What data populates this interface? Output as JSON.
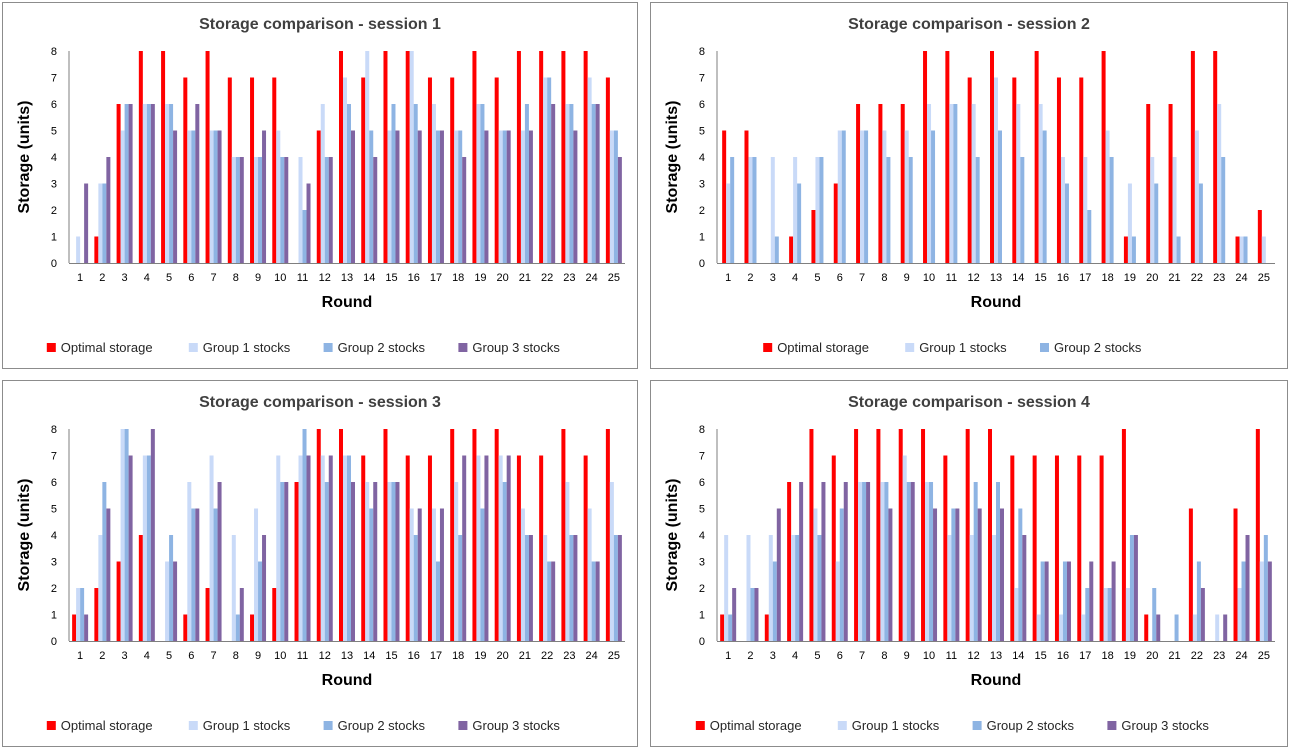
{
  "colors": {
    "optimal": "#ff0000",
    "group1": "#c9daf8",
    "group2": "#8eb4e3",
    "group3": "#8064a2",
    "axis": "#7f7f7f"
  },
  "chart_data": [
    {
      "type": "bar",
      "title": "Storage comparison - session 1",
      "xlabel": "Round",
      "ylabel": "Storage (units)",
      "ylim": [
        0,
        8
      ],
      "grid": false,
      "legend": "bottom",
      "categories": [
        "1",
        "2",
        "3",
        "4",
        "5",
        "6",
        "7",
        "8",
        "9",
        "10",
        "11",
        "12",
        "13",
        "14",
        "15",
        "16",
        "17",
        "18",
        "19",
        "20",
        "21",
        "22",
        "23",
        "24",
        "25"
      ],
      "series": [
        {
          "name": "Optimal storage",
          "values": [
            0,
            1,
            6,
            8,
            8,
            7,
            8,
            7,
            7,
            7,
            0,
            5,
            8,
            7,
            8,
            8,
            7,
            7,
            8,
            7,
            8,
            8,
            8,
            8,
            7
          ]
        },
        {
          "name": "Group 1 stocks",
          "values": [
            1,
            3,
            5,
            6,
            6,
            5,
            5,
            4,
            4,
            5,
            4,
            6,
            7,
            8,
            5,
            8,
            6,
            5,
            6,
            5,
            5,
            7,
            6,
            7,
            5
          ]
        },
        {
          "name": "Group 2 stocks",
          "values": [
            0,
            3,
            6,
            6,
            6,
            5,
            5,
            4,
            4,
            4,
            2,
            4,
            6,
            5,
            6,
            6,
            5,
            5,
            6,
            5,
            6,
            7,
            6,
            6,
            5
          ]
        },
        {
          "name": "Group 3 stocks",
          "values": [
            3,
            4,
            6,
            6,
            5,
            6,
            5,
            4,
            5,
            4,
            3,
            4,
            5,
            4,
            5,
            5,
            5,
            4,
            5,
            5,
            5,
            6,
            5,
            6,
            4
          ]
        }
      ]
    },
    {
      "type": "bar",
      "title": "Storage comparison - session 2",
      "xlabel": "Round",
      "ylabel": "Storage (units)",
      "ylim": [
        0,
        8
      ],
      "grid": false,
      "legend": "bottom",
      "categories": [
        "1",
        "2",
        "3",
        "4",
        "5",
        "6",
        "7",
        "8",
        "9",
        "10",
        "11",
        "12",
        "13",
        "14",
        "15",
        "16",
        "17",
        "18",
        "19",
        "20",
        "21",
        "22",
        "23",
        "24",
        "25"
      ],
      "series": [
        {
          "name": "Optimal storage",
          "values": [
            5,
            5,
            0,
            1,
            2,
            3,
            6,
            6,
            6,
            8,
            8,
            7,
            8,
            7,
            8,
            7,
            7,
            8,
            1,
            6,
            6,
            8,
            8,
            1,
            2
          ]
        },
        {
          "name": "Group 1 stocks",
          "values": [
            3,
            4,
            4,
            4,
            4,
            5,
            5,
            5,
            5,
            6,
            6,
            6,
            7,
            6,
            6,
            4,
            4,
            5,
            3,
            4,
            4,
            5,
            6,
            1,
            1
          ]
        },
        {
          "name": "Group 2 stocks",
          "values": [
            4,
            4,
            1,
            3,
            4,
            5,
            5,
            4,
            4,
            5,
            6,
            4,
            5,
            4,
            5,
            3,
            2,
            4,
            1,
            3,
            1,
            3,
            4,
            1,
            0
          ]
        }
      ]
    },
    {
      "type": "bar",
      "title": "Storage comparison - session 3",
      "xlabel": "Round",
      "ylabel": "Storage (units)",
      "ylim": [
        0,
        8
      ],
      "grid": false,
      "legend": "bottom",
      "categories": [
        "1",
        "2",
        "3",
        "4",
        "5",
        "6",
        "7",
        "8",
        "9",
        "10",
        "11",
        "12",
        "13",
        "14",
        "15",
        "16",
        "17",
        "18",
        "19",
        "20",
        "21",
        "22",
        "23",
        "24",
        "25"
      ],
      "series": [
        {
          "name": "Optimal storage",
          "values": [
            1,
            2,
            3,
            4,
            0,
            1,
            2,
            0,
            1,
            2,
            6,
            8,
            8,
            7,
            8,
            7,
            7,
            8,
            8,
            8,
            7,
            7,
            8,
            7,
            8
          ]
        },
        {
          "name": "Group 1 stocks",
          "values": [
            2,
            4,
            8,
            7,
            3,
            6,
            7,
            4,
            5,
            7,
            7,
            7,
            7,
            6,
            6,
            5,
            5,
            6,
            7,
            7,
            5,
            4,
            6,
            5,
            6
          ]
        },
        {
          "name": "Group 2 stocks",
          "values": [
            2,
            6,
            8,
            7,
            4,
            5,
            5,
            1,
            3,
            6,
            8,
            6,
            7,
            5,
            6,
            4,
            3,
            4,
            5,
            6,
            4,
            3,
            4,
            3,
            4
          ]
        },
        {
          "name": "Group 3 stocks",
          "values": [
            1,
            5,
            7,
            8,
            3,
            5,
            6,
            2,
            4,
            6,
            7,
            7,
            6,
            6,
            6,
            5,
            5,
            7,
            7,
            7,
            4,
            3,
            4,
            3,
            4
          ]
        }
      ]
    },
    {
      "type": "bar",
      "title": "Storage comparison - session 4",
      "xlabel": "Round",
      "ylabel": "Storage (units)",
      "ylim": [
        0,
        8
      ],
      "grid": false,
      "legend": "bottom",
      "categories": [
        "1",
        "2",
        "3",
        "4",
        "5",
        "6",
        "7",
        "8",
        "9",
        "10",
        "11",
        "12",
        "13",
        "14",
        "15",
        "16",
        "17",
        "18",
        "19",
        "20",
        "21",
        "22",
        "23",
        "24",
        "25"
      ],
      "series": [
        {
          "name": "Optimal storage",
          "values": [
            1,
            0,
            1,
            6,
            8,
            7,
            8,
            8,
            8,
            8,
            7,
            8,
            8,
            7,
            7,
            7,
            7,
            7,
            8,
            1,
            0,
            5,
            0,
            5,
            8
          ]
        },
        {
          "name": "Group 1 stocks",
          "values": [
            4,
            4,
            4,
            4,
            5,
            3,
            6,
            6,
            7,
            6,
            4,
            4,
            4,
            2,
            1,
            1,
            1,
            2,
            2,
            0,
            0,
            1,
            1,
            2,
            3
          ]
        },
        {
          "name": "Group 2 stocks",
          "values": [
            1,
            2,
            3,
            4,
            4,
            5,
            6,
            6,
            6,
            6,
            5,
            6,
            6,
            5,
            3,
            3,
            2,
            2,
            4,
            2,
            1,
            3,
            0,
            3,
            4
          ]
        },
        {
          "name": "Group 3 stocks",
          "values": [
            2,
            2,
            5,
            6,
            6,
            6,
            6,
            5,
            6,
            5,
            5,
            5,
            5,
            4,
            3,
            3,
            3,
            3,
            4,
            1,
            0,
            2,
            1,
            4,
            3
          ]
        }
      ]
    }
  ]
}
